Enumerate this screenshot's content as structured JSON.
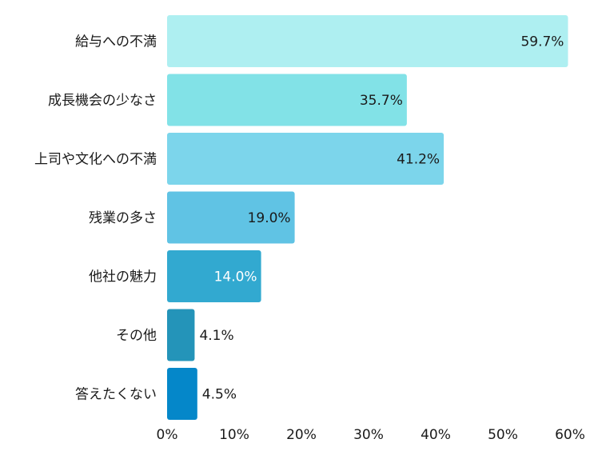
{
  "chart_data": {
    "type": "bar",
    "orientation": "horizontal",
    "categories": [
      "給与への不満",
      "成長機会の少なさ",
      "上司や文化への不満",
      "残業の多さ",
      "他社の魅力",
      "その他",
      "答えたくない"
    ],
    "values": [
      59.7,
      35.7,
      41.2,
      19.0,
      14.0,
      4.1,
      4.5
    ],
    "value_labels": [
      "59.7%",
      "35.7%",
      "41.2%",
      "19.0%",
      "14.0%",
      "4.1%",
      "4.5%"
    ],
    "colors": [
      "#aeeff1",
      "#82e2e7",
      "#7cd5eb",
      "#60c3e4",
      "#32a9d0",
      "#2494b9",
      "#0587c9"
    ],
    "label_colors": [
      "#1a1a1a",
      "#1a1a1a",
      "#1a1a1a",
      "#1a1a1a",
      "#ffffff",
      "#1a1a1a",
      "#1a1a1a"
    ],
    "xlim": [
      0,
      60
    ],
    "xticks": [
      0,
      10,
      20,
      30,
      40,
      50,
      60
    ],
    "xtick_labels": [
      "0%",
      "10%",
      "20%",
      "30%",
      "40%",
      "50%",
      "60%"
    ],
    "title": "",
    "xlabel": "",
    "ylabel": "",
    "grid": false,
    "legend": "none"
  }
}
